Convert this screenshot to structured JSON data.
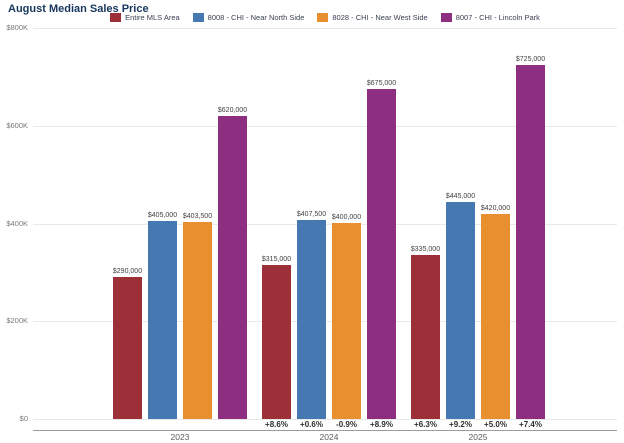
{
  "title": "August Median Sales Price",
  "y_axis": {
    "ticks": [
      "$800K",
      "$600K",
      "$400K",
      "$200K",
      "$0"
    ]
  },
  "chart_data": {
    "type": "bar",
    "title": "August Median Sales Price",
    "categories": [
      "2023",
      "2024",
      "2025"
    ],
    "series": [
      {
        "name": "Entire MLS Area",
        "color": "#9D2F38",
        "values": [
          290000,
          315000,
          335000
        ],
        "value_labels": [
          "$290,000",
          "$315,000",
          "$335,000"
        ],
        "pct_change": [
          "",
          "+8.6%",
          "+6.3%"
        ]
      },
      {
        "name": "8008 - CHI - Near North Side",
        "color": "#4678B2",
        "values": [
          405000,
          407500,
          445000
        ],
        "value_labels": [
          "$405,000",
          "$407,500",
          "$445,000"
        ],
        "pct_change": [
          "",
          "+0.6%",
          "+9.2%"
        ]
      },
      {
        "name": "8028 - CHI - Near West Side",
        "color": "#E8902F",
        "values": [
          403500,
          400000,
          420000
        ],
        "value_labels": [
          "$403,500",
          "$400,000",
          "$420,000"
        ],
        "pct_change": [
          "",
          "-0.9%",
          "+5.0%"
        ]
      },
      {
        "name": "8007 - CHI - Lincoln Park",
        "color": "#8E2E81",
        "values": [
          620000,
          675000,
          725000
        ],
        "value_labels": [
          "$620,000",
          "$675,000",
          "$725,000"
        ],
        "pct_change": [
          "",
          "+8.9%",
          "+7.4%"
        ]
      }
    ],
    "ylim": [
      0,
      800000
    ],
    "grid": true,
    "legend_position": "top"
  }
}
